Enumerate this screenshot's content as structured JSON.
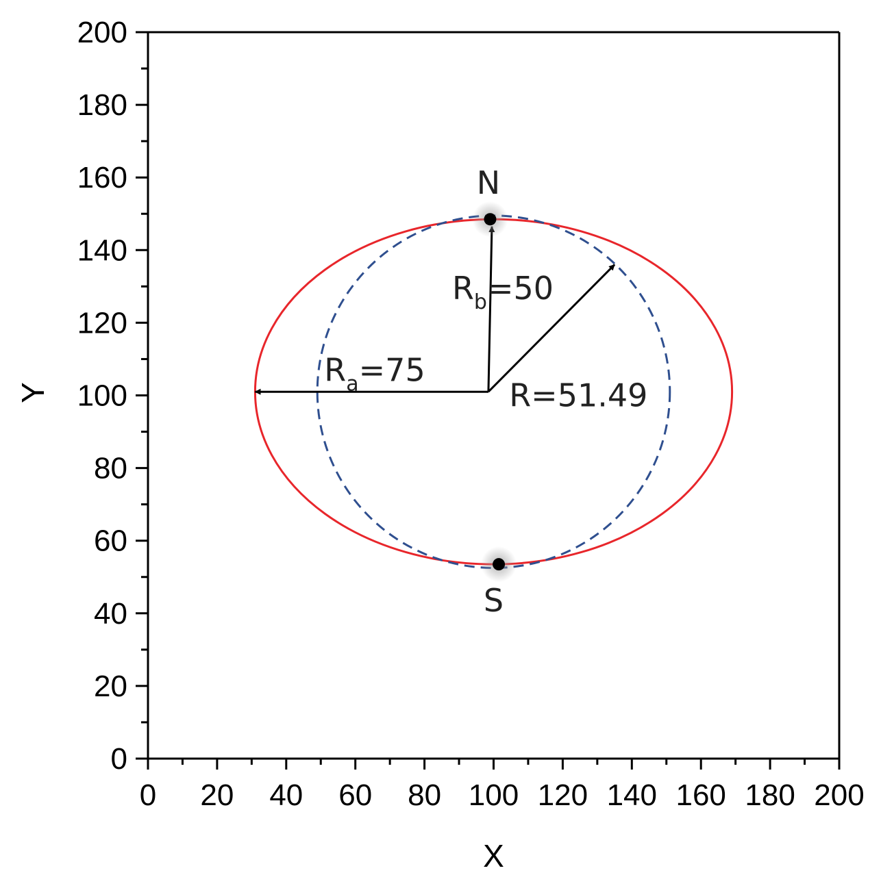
{
  "chart_data": {
    "type": "line",
    "xlabel": "X",
    "ylabel": "Y",
    "xlim": [
      0,
      200
    ],
    "ylim": [
      0,
      200
    ],
    "xticks": [
      "0",
      "20",
      "40",
      "60",
      "80",
      "100",
      "120",
      "140",
      "160",
      "180",
      "200"
    ],
    "yticks": [
      "0",
      "20",
      "40",
      "60",
      "80",
      "100",
      "120",
      "140",
      "160",
      "180",
      "200"
    ],
    "grid": false,
    "series": [
      {
        "shape": "ellipse",
        "center": [
          100,
          101
        ],
        "rx": 69,
        "ry": 47.5,
        "color": "#e8262b",
        "style": "solid"
      },
      {
        "shape": "circle",
        "center": [
          100,
          101
        ],
        "rx": 51,
        "ry": 48.5,
        "color": "#2f4f8f",
        "style": "dashed"
      }
    ],
    "points": [
      {
        "label": "N",
        "x": 99,
        "y": 148.5
      },
      {
        "label": "S",
        "x": 101.5,
        "y": 53.5
      }
    ],
    "arrows": [
      {
        "from": [
          98.5,
          101
        ],
        "to": [
          31,
          101
        ]
      },
      {
        "from": [
          98.5,
          101
        ],
        "to": [
          99.5,
          146.5
        ]
      },
      {
        "from": [
          98.5,
          101
        ],
        "to": [
          135,
          136
        ]
      }
    ],
    "annotations": {
      "ra": {
        "main": "R",
        "sub": "a",
        "rest": "=75",
        "x": 51,
        "y": 104
      },
      "rb": {
        "main": "R",
        "sub": "b",
        "rest": "=50",
        "x": 88,
        "y": 126.5
      },
      "r": {
        "text": "R=51.49",
        "x": 104.5,
        "y": 97
      },
      "n": {
        "text": "N",
        "x": 98.5,
        "y": 155.5
      },
      "s": {
        "text": "S",
        "x": 100,
        "y": 40.5
      }
    }
  }
}
